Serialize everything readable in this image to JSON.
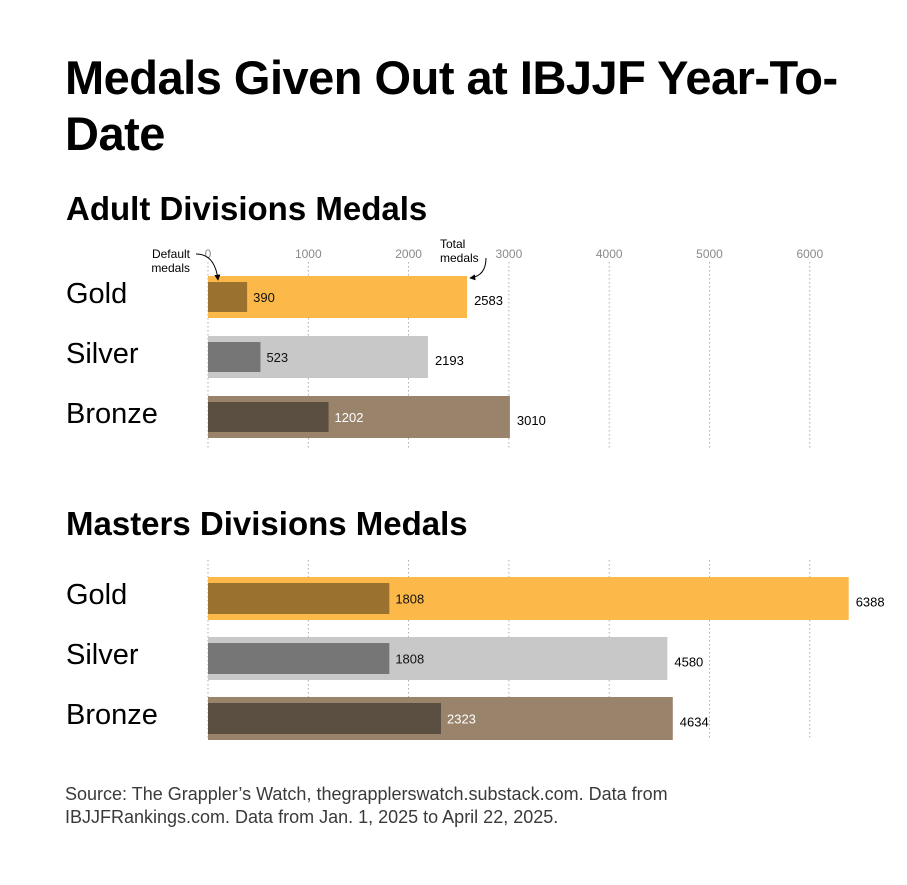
{
  "title": "Medals Given Out at IBJJF Year-To-Date",
  "source": "Source: The Grappler’s Watch, thegrapplerswatch.substack.com. Data from IBJJFRankings.com. Data from Jan. 1, 2025 to April 22, 2025.",
  "colors": {
    "gold_total": "#FCB949",
    "gold_default": "#9B7130",
    "silver_total": "#C8C8C8",
    "silver_default": "#767676",
    "bronze_total": "#9A836B",
    "bronze_default": "#5A4F40",
    "grid": "#9a9a9a"
  },
  "chart_data": {
    "type": "bar",
    "orientation": "horizontal",
    "grid": true,
    "xlim": [
      0,
      6400
    ],
    "ticks": [
      0,
      1000,
      2000,
      3000,
      4000,
      5000,
      6000
    ],
    "annotations": {
      "default": "Default medals",
      "total": "Total medals"
    },
    "panels": [
      {
        "title": "Adult Divisions Medals",
        "categories": [
          "Gold",
          "Silver",
          "Bronze"
        ],
        "default_medals": [
          390,
          523,
          1202
        ],
        "total_medals": [
          2583,
          2193,
          3010
        ]
      },
      {
        "title": "Masters Divisions Medals",
        "categories": [
          "Gold",
          "Silver",
          "Bronze"
        ],
        "default_medals": [
          1808,
          1808,
          2323
        ],
        "total_medals": [
          6388,
          4580,
          4634
        ]
      }
    ]
  }
}
